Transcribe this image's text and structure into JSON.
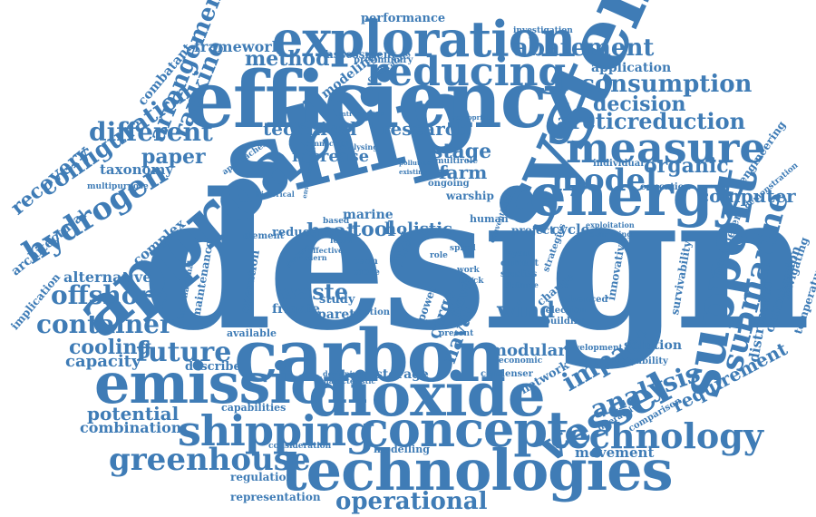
{
  "colors": {
    "word": "#3f7cb6",
    "word_light": "#6a9ccb",
    "background": "#ffffff"
  },
  "words": {
    "design": "design",
    "ship": "ship",
    "efficiency": "efficiency",
    "system": "system",
    "approach": "approach",
    "carbon": "carbon",
    "dioxide": "dioxide",
    "emission": "emission",
    "concept": "concept",
    "shipping": "shipping",
    "technologies": "technologies",
    "exploration": "exploration",
    "reducing": "reducing",
    "energy": "energy",
    "measure": "measure",
    "support": "support",
    "submarine": "submarine",
    "vessel": "vessel",
    "technology": "technology",
    "model": "model",
    "greenhouse": "greenhouse",
    "operational": "operational",
    "hydrogen": "hydrogen",
    "configuration": "configuration",
    "arrangement": "arrangement",
    "rankine": "rankine",
    "different": "different",
    "paper": "paper",
    "future": "future",
    "container": "container",
    "offshore": "offshore",
    "abatement": "abatement",
    "consumption": "consumption",
    "decision": "decision",
    "arcticreduction": "arcticreduction",
    "organic": "organic",
    "computer": "computer",
    "impact": "impact",
    "analysis": "analysis",
    "requirement": "requirement",
    "naval": "naval",
    "waste": "waste",
    "heat": "heat",
    "tool": "tool",
    "stage": "stage",
    "method": "method",
    "technical": "technical",
    "research": "research",
    "framework": "framework",
    "modular": "modular",
    "wind": "wind",
    "cooling": "cooling",
    "capacity": "capacity",
    "potential": "potential",
    "combination": "combination",
    "alternative": "alternative",
    "recovery": "recovery",
    "architectural": "architectural",
    "complex": "complex",
    "taxonomy": "taxonomy",
    "application": "application",
    "performance": "performance",
    "assessment": "assessment",
    "modeling": "modeling",
    "increase": "increase",
    "farm": "farm",
    "marine": "marine",
    "holistic": "holistic",
    "reduce": "reduce",
    "frigate": "frigate",
    "pareto": "pareto",
    "study": "study",
    "cargo": "cargo",
    "novel": "novel",
    "fuel": "fuel",
    "storage": "storage",
    "network": "network",
    "cycle": "cycle",
    "project": "project",
    "solution": "solution",
    "distributed": "distributed",
    "optimisation": "optimisation",
    "navigating": "navigating",
    "temperature": "temperature",
    "engineering": "engineering",
    "demonstration": "demonstration",
    "parameter": "parameter",
    "survivability": "survivability",
    "describe": "describe",
    "capabilities": "capabilities",
    "consideration": "consideration",
    "regulation": "regulation",
    "representation": "representation",
    "modelling": "modelling",
    "movement": "movement",
    "comparison": "comparison",
    "interactive": "interactive",
    "condenser": "condenser",
    "economic": "economic",
    "capability": "capability",
    "development": "development",
    "combatant": "combatant",
    "implication": "implication",
    "multipurpose": "multipurpose",
    "maintenance": "maintenance",
    "operation": "operation",
    "available": "available",
    "element": "element",
    "approaches": "approaches",
    "historical": "historical",
    "warship": "warship",
    "ongoing": "ongoing",
    "multirole": "multirole",
    "education": "education",
    "individual": "individual",
    "investigation": "investigation",
    "innovative": "innovative",
    "selection": "selection",
    "building": "building",
    "change": "change",
    "advanced": "advanced",
    "current": "current",
    "studies": "studies",
    "strategies": "strategies",
    "power": "power",
    "block": "block",
    "work": "work",
    "human": "human",
    "lower": "lower",
    "term": "term",
    "more": "more",
    "role": "role",
    "based": "based",
    "effective": "effective",
    "option": "option",
    "present": "present",
    "characteristic": "characteristic",
    "designing": "designing",
    "international": "international",
    "integrated": "integrated",
    "connection": "connection",
    "analysing": "analysing",
    "preliminary": "preliminary",
    "calibrating": "calibrating",
    "introduction": "introduction",
    "appropriate": "appropriate",
    "supportive": "supportive",
    "exploitation": "exploitation",
    "examining": "examining",
    "layout": "layout",
    "conventional": "conventional",
    "distance": "distance",
    "general": "general",
    "spiral": "spiral",
    "modern": "modern",
    "feature": "feature",
    "environmental": "environmental",
    "pollution": "pollution",
    "existing": "existing",
    "propulsion": "propulsion",
    "relationship": "relationship",
    "information": "information",
    "automation": "automation",
    "evaluation": "evaluation",
    "mission": "mission",
    "output": "output",
    "level": "level",
    "load": "load",
    "gas": "gas",
    "test": "test",
    "hull": "hull",
    "future_small": "future",
    "first": "first",
    "process": "proc",
    "small": "small",
    "air": "air",
    "type": "type",
    "flow": "flow",
    "low": "low",
    "use": "use",
    "conversion": "conversion",
    "thermal": "thermal",
    "cost": "cost",
    "speed": "speed",
    "risk": "risk",
    "size": "size",
    "shore": "shore",
    "plant": "plant",
    "ability": "ability",
    "steam": "steam",
    "tanker": "tanker",
    "sector": "sector",
    "zero": "zero",
    "data": "data",
    "global": "global",
    "range": "range",
    "oil": "oil",
    "fleet": "fleet"
  }
}
